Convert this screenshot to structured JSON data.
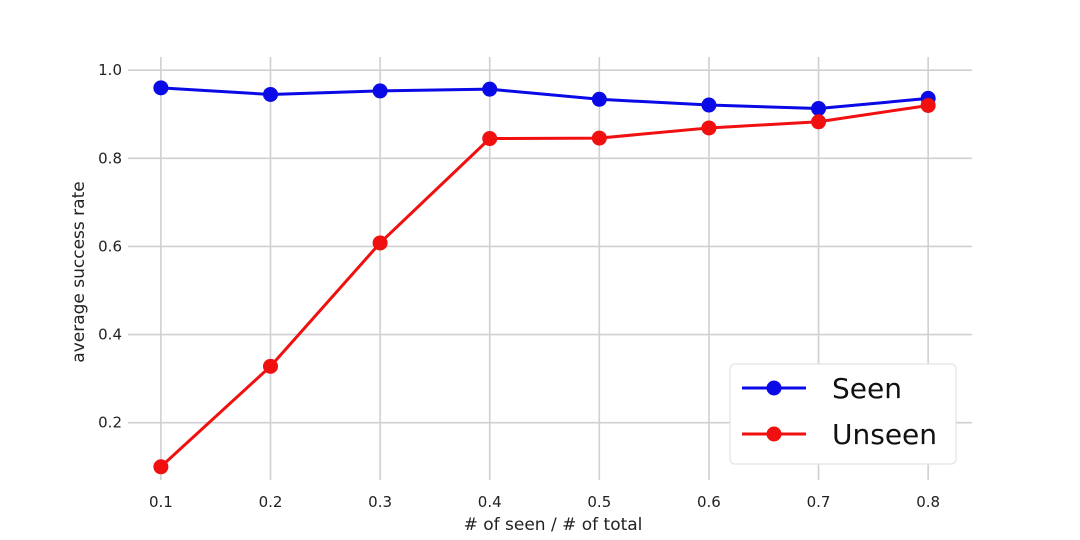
{
  "chart_data": {
    "type": "line",
    "title": "",
    "xlabel": "# of seen / # of total",
    "ylabel": "average success rate",
    "x": [
      0.1,
      0.2,
      0.3,
      0.4,
      0.5,
      0.6,
      0.7,
      0.8
    ],
    "x_tick_labels": [
      "0.1",
      "0.2",
      "0.3",
      "0.4",
      "0.5",
      "0.6",
      "0.7",
      "0.8"
    ],
    "y_ticks": [
      0.2,
      0.4,
      0.6,
      0.8,
      1.0
    ],
    "y_tick_labels": [
      "0.2",
      "0.4",
      "0.6",
      "0.8",
      "1.0"
    ],
    "xlim": [
      0.07,
      0.84
    ],
    "ylim": [
      0.07,
      1.03
    ],
    "grid": true,
    "legend_position": "bottom-right",
    "series": [
      {
        "name": "Seen",
        "color": "#0a0ae6",
        "values": [
          0.96,
          0.945,
          0.953,
          0.957,
          0.934,
          0.921,
          0.913,
          0.936
        ]
      },
      {
        "name": "Unseen",
        "color": "#f01010",
        "values": [
          0.1,
          0.328,
          0.608,
          0.845,
          0.846,
          0.869,
          0.883,
          0.92
        ]
      }
    ]
  }
}
